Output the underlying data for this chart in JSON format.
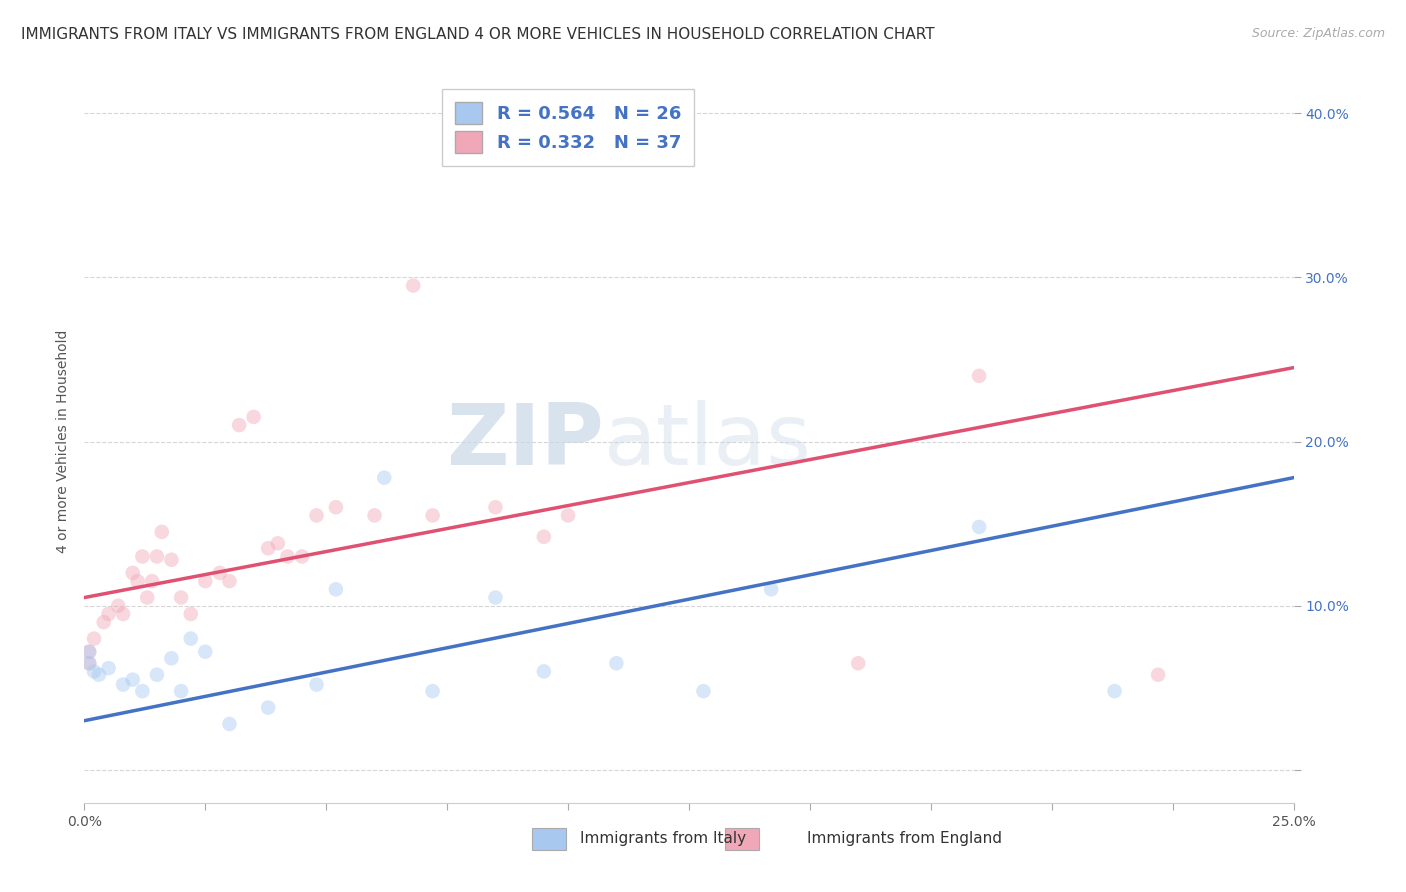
{
  "title": "IMMIGRANTS FROM ITALY VS IMMIGRANTS FROM ENGLAND 4 OR MORE VEHICLES IN HOUSEHOLD CORRELATION CHART",
  "source": "Source: ZipAtlas.com",
  "ylabel": "4 or more Vehicles in Household",
  "xlim": [
    0.0,
    0.25
  ],
  "ylim": [
    -0.02,
    0.42
  ],
  "xticks": [
    0.0,
    0.025,
    0.05,
    0.075,
    0.1,
    0.125,
    0.15,
    0.175,
    0.2,
    0.225,
    0.25
  ],
  "xticklabels_show": [
    "0.0%",
    "25.0%"
  ],
  "yticks": [
    0.0,
    0.1,
    0.2,
    0.3,
    0.4
  ],
  "yticklabels": [
    "",
    "10.0%",
    "20.0%",
    "30.0%",
    "40.0%"
  ],
  "italy_R": 0.564,
  "italy_N": 26,
  "england_R": 0.332,
  "england_N": 37,
  "italy_color": "#a8c8f0",
  "england_color": "#f0a8b8",
  "italy_line_color": "#4472c4",
  "england_line_color": "#e05070",
  "legend_label_italy": "Immigrants from Italy",
  "legend_label_england": "Immigrants from England",
  "italy_x": [
    0.001,
    0.001,
    0.002,
    0.003,
    0.005,
    0.008,
    0.01,
    0.012,
    0.015,
    0.018,
    0.02,
    0.022,
    0.025,
    0.03,
    0.038,
    0.048,
    0.052,
    0.062,
    0.072,
    0.085,
    0.095,
    0.11,
    0.128,
    0.142,
    0.185,
    0.213
  ],
  "italy_y": [
    0.072,
    0.065,
    0.06,
    0.058,
    0.062,
    0.052,
    0.055,
    0.048,
    0.058,
    0.068,
    0.048,
    0.08,
    0.072,
    0.028,
    0.038,
    0.052,
    0.11,
    0.178,
    0.048,
    0.105,
    0.06,
    0.065,
    0.048,
    0.11,
    0.148,
    0.048
  ],
  "england_x": [
    0.001,
    0.001,
    0.002,
    0.004,
    0.005,
    0.007,
    0.008,
    0.01,
    0.011,
    0.012,
    0.013,
    0.014,
    0.015,
    0.016,
    0.018,
    0.02,
    0.022,
    0.025,
    0.028,
    0.03,
    0.032,
    0.035,
    0.038,
    0.04,
    0.042,
    0.045,
    0.048,
    0.052,
    0.06,
    0.068,
    0.072,
    0.085,
    0.095,
    0.1,
    0.16,
    0.185,
    0.222
  ],
  "england_y": [
    0.072,
    0.065,
    0.08,
    0.09,
    0.095,
    0.1,
    0.095,
    0.12,
    0.115,
    0.13,
    0.105,
    0.115,
    0.13,
    0.145,
    0.128,
    0.105,
    0.095,
    0.115,
    0.12,
    0.115,
    0.21,
    0.215,
    0.135,
    0.138,
    0.13,
    0.13,
    0.155,
    0.16,
    0.155,
    0.295,
    0.155,
    0.16,
    0.142,
    0.155,
    0.065,
    0.24,
    0.058
  ],
  "italy_line_x0": 0.0,
  "italy_line_y0": 0.03,
  "italy_line_x1": 0.25,
  "italy_line_y1": 0.178,
  "england_line_x0": 0.0,
  "england_line_y0": 0.105,
  "england_line_x1": 0.25,
  "england_line_y1": 0.245,
  "watermark_zip": "ZIP",
  "watermark_atlas": "atlas",
  "background_color": "#ffffff",
  "grid_color": "#cccccc",
  "title_fontsize": 11,
  "axis_label_fontsize": 10,
  "tick_fontsize": 10,
  "legend_fontsize": 13,
  "marker_size": 110,
  "marker_alpha": 0.45,
  "line_width": 2.5
}
